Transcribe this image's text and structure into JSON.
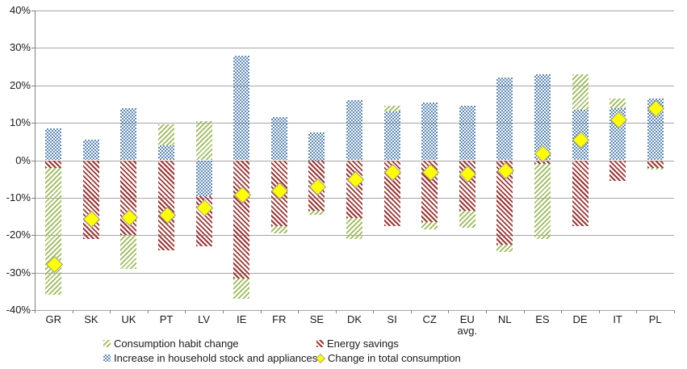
{
  "chart_data": {
    "type": "bar",
    "subtype": "stacked-with-marker-overlay",
    "title": "",
    "xlabel": "",
    "ylabel": "",
    "categories": [
      "GR",
      "SK",
      "UK",
      "PT",
      "LV",
      "IE",
      "FR",
      "SE",
      "DK",
      "SI",
      "CZ",
      "EU\navg.",
      "NL",
      "ES",
      "DE",
      "IT",
      "PL"
    ],
    "series": [
      {
        "name": "Consumption habit change",
        "key": "habit",
        "color": "#9bba59",
        "pattern": "light-green-diagonal-up-hatch",
        "values": [
          -34,
          0,
          -9,
          5.5,
          10.5,
          -5.5,
          -2,
          -1,
          -5.5,
          1.5,
          -2,
          -4.5,
          -2,
          -20,
          9.5,
          2.5,
          -0.5
        ]
      },
      {
        "name": "Energy savings",
        "key": "savings",
        "color": "#9c3735",
        "pattern": "dark-red-diagonal-down-hatch",
        "values": [
          -2,
          -21,
          -20,
          -24,
          -13.5,
          -31.5,
          -17.5,
          -13.5,
          -15.5,
          -17.5,
          -16.5,
          -13.5,
          -22.5,
          -1,
          -17.5,
          -5.5,
          -2
        ]
      },
      {
        "name": "Increase in household stock and appliances",
        "key": "stock",
        "color": "#5b87b5",
        "pattern": "blue-checkerboard-weave",
        "values": [
          8.5,
          5.5,
          14,
          4,
          -9.5,
          28,
          11.5,
          7.5,
          16,
          13,
          15.5,
          14.5,
          22,
          23,
          13.5,
          14,
          16.5
        ]
      }
    ],
    "marker_series": {
      "name": "Change in total consumption",
      "marker": "diamond",
      "fill_color": "#ffff00",
      "border_color": "#9a9a9a",
      "values": [
        -27.5,
        -15.5,
        -15,
        -14.5,
        -12.5,
        -9,
        -8,
        -7,
        -5,
        -3,
        -3,
        -3.5,
        -2.5,
        2,
        5.5,
        11,
        14
      ]
    },
    "stack_order_from_zero": [
      "stock",
      "savings",
      "habit"
    ],
    "ylim": [
      -40,
      40
    ],
    "ytick_step": 10,
    "ytick_suffix": "%",
    "grid": true,
    "grid_color": "#a6a6a6",
    "axis_color": "#808080",
    "text_color": "#1a1a1a",
    "legend_position": "bottom-two-columns"
  },
  "legend": {
    "items": [
      {
        "label": "Consumption habit change",
        "swatch": "green-hatch-swatch",
        "col": 0,
        "row": 0
      },
      {
        "label": "Energy savings",
        "swatch": "red-hatch-swatch",
        "col": 1,
        "row": 0
      },
      {
        "label": "Increase in household stock and appliances",
        "swatch": "blue-checker-swatch",
        "col": 0,
        "row": 1
      },
      {
        "label": "Change in total consumption",
        "swatch": "yellow-diamond-swatch",
        "col": 1,
        "row": 1
      }
    ]
  }
}
